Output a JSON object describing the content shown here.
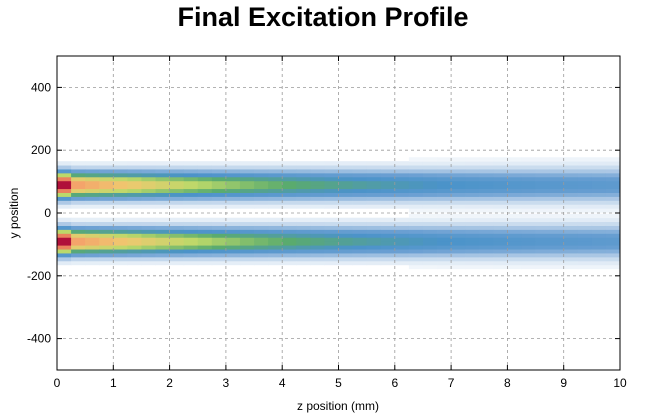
{
  "chart_data": {
    "type": "heatmap",
    "title": "Final Excitation Profile",
    "xlabel": "z position (mm)",
    "ylabel": "y position",
    "xlim": [
      0,
      10
    ],
    "ylim": [
      -500,
      500
    ],
    "xticks": [
      "0",
      "1",
      "2",
      "3",
      "4",
      "5",
      "6",
      "7",
      "8",
      "9",
      "10"
    ],
    "yticks": [
      "-400",
      "-200",
      "0",
      "200",
      "400"
    ],
    "grid": true,
    "bands": [
      {
        "name": "upper band",
        "y_center": 90
      },
      {
        "name": "lower band",
        "y_center": -90
      }
    ],
    "cell_size": {
      "z_mm": 0.25,
      "y": 12.5
    },
    "band_half_width_y": 55,
    "colormap": [
      "#ffffff",
      "#dce8f4",
      "#a9c6e4",
      "#6a9fd2",
      "#4b93c9",
      "#5aab6e",
      "#bcd96a",
      "#f0c870",
      "#f4a06a",
      "#d04040",
      "#b0103a"
    ],
    "profile": {
      "peak_intensity_at_entry": 1.0,
      "entry_z_mm": 0.25,
      "decay_length_mm": 4.5,
      "floor_intensity": 0.28
    }
  }
}
